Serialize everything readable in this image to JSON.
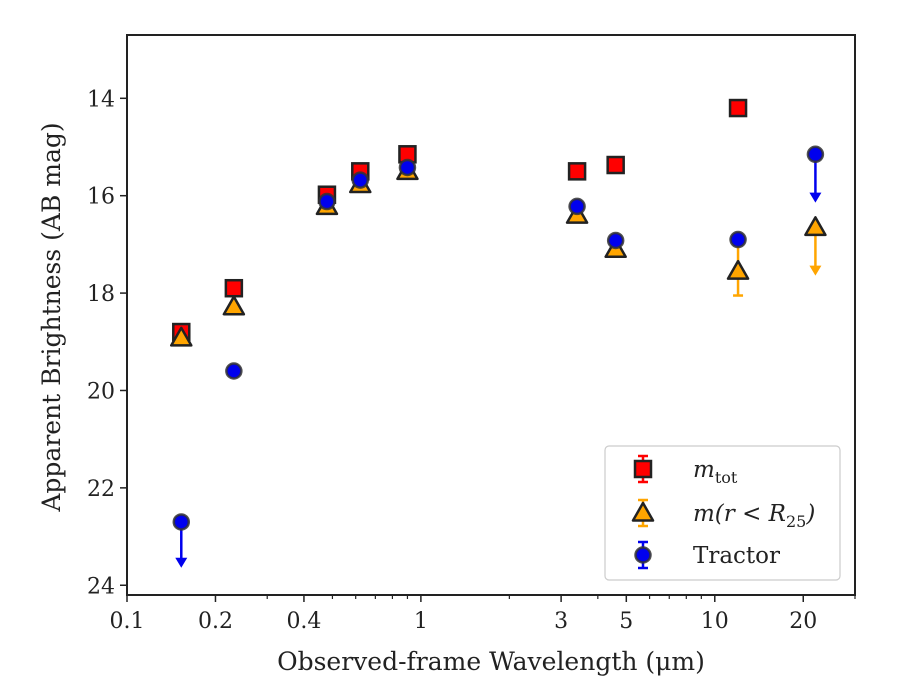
{
  "chart_data": {
    "type": "scatter",
    "xscale": "log",
    "xlim": [
      0.1,
      30
    ],
    "ylim": [
      24.2,
      12.7
    ],
    "y_inverted": true,
    "xlabel": "Observed-frame Wavelength (μm)",
    "ylabel": "Apparent Brightness (AB mag)",
    "x_ticks": [
      {
        "value": 0.1,
        "label": "0.1"
      },
      {
        "value": 0.2,
        "label": "0.2"
      },
      {
        "value": 0.4,
        "label": "0.4"
      },
      {
        "value": 1,
        "label": "1"
      },
      {
        "value": 3,
        "label": "3"
      },
      {
        "value": 5,
        "label": "5"
      },
      {
        "value": 10,
        "label": "10"
      },
      {
        "value": 20,
        "label": "20"
      }
    ],
    "x_minor_ticks": [
      0.3,
      0.5,
      0.6,
      0.7,
      0.8,
      0.9,
      2,
      4,
      6,
      7,
      8,
      9,
      30
    ],
    "y_ticks": [
      {
        "value": 14,
        "label": "14"
      },
      {
        "value": 16,
        "label": "16"
      },
      {
        "value": 18,
        "label": "18"
      },
      {
        "value": 20,
        "label": "20"
      },
      {
        "value": 22,
        "label": "22"
      },
      {
        "value": 24,
        "label": "24"
      }
    ],
    "grid": false,
    "legend_position": "bottom-right",
    "series": [
      {
        "name": "m_tot",
        "legend_main": "m",
        "legend_sub": "tot",
        "marker": "square",
        "color": "#ff0000",
        "edgecolor": "#222222",
        "points": [
          {
            "x": 0.153,
            "y": 18.8
          },
          {
            "x": 0.231,
            "y": 17.9
          },
          {
            "x": 0.479,
            "y": 15.98
          },
          {
            "x": 0.622,
            "y": 15.5
          },
          {
            "x": 0.9,
            "y": 15.15
          },
          {
            "x": 3.4,
            "y": 15.5
          },
          {
            "x": 4.6,
            "y": 15.37
          },
          {
            "x": 12.0,
            "y": 14.2
          }
        ]
      },
      {
        "name": "m(r < R25)",
        "legend_main": "m(r < R",
        "legend_sub": "25",
        "legend_close": ")",
        "marker": "triangle",
        "color": "#ffa500",
        "edgecolor": "#222222",
        "points": [
          {
            "x": 0.153,
            "y": 18.92
          },
          {
            "x": 0.231,
            "y": 18.28
          },
          {
            "x": 0.479,
            "y": 16.22
          },
          {
            "x": 0.622,
            "y": 15.77
          },
          {
            "x": 0.9,
            "y": 15.5
          },
          {
            "x": 3.4,
            "y": 16.4
          },
          {
            "x": 4.6,
            "y": 17.1
          },
          {
            "x": 12.0,
            "y": 17.55,
            "yerr": 0.5
          },
          {
            "x": 22.0,
            "y": 16.65,
            "upper_limit": true,
            "arrow_to": 17.6
          }
        ]
      },
      {
        "name": "Tractor",
        "legend_main": "Tractor",
        "marker": "circle",
        "color": "#0000ee",
        "edgecolor": "#333333",
        "points": [
          {
            "x": 0.153,
            "y": 22.7,
            "upper_limit": true,
            "arrow_to": 23.6
          },
          {
            "x": 0.231,
            "y": 19.6
          },
          {
            "x": 0.479,
            "y": 16.12
          },
          {
            "x": 0.622,
            "y": 15.68
          },
          {
            "x": 0.9,
            "y": 15.42
          },
          {
            "x": 3.4,
            "y": 16.22
          },
          {
            "x": 4.6,
            "y": 16.92
          },
          {
            "x": 12.0,
            "y": 16.9
          },
          {
            "x": 22.0,
            "y": 15.15,
            "upper_limit": true,
            "arrow_to": 16.1
          }
        ]
      }
    ]
  }
}
